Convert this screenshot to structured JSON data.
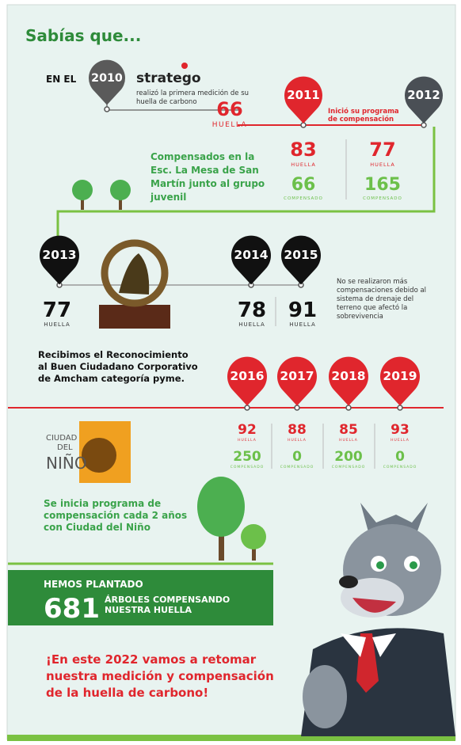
{
  "title": "Sabías que...",
  "y2010": {
    "prefix": "EN EL",
    "year": "2010",
    "brand": "stratego",
    "description": [
      "realizó la primera medición de su",
      "huella de carbono"
    ],
    "footprint": "66",
    "footprint_label": "HUELLA"
  },
  "y2011_2012": {
    "years": [
      "2011",
      "2012"
    ],
    "note": [
      "Inició su programa",
      "de compensación"
    ],
    "footprints": [
      "83",
      "77"
    ],
    "compensated": [
      "66",
      "165"
    ],
    "footprint_label": "HUELLA",
    "compensated_label": "COMPENSADO",
    "caption": [
      "Compensados en la",
      "Esc. La Mesa de San",
      "Martín junto al grupo",
      "juvenil"
    ]
  },
  "y2013_2015": {
    "years": [
      "2013",
      "2014",
      "2015"
    ],
    "footprints": [
      "77",
      "78",
      "91"
    ],
    "footprint_label": "HUELLA",
    "note": [
      "No se realizaron más",
      "compensaciones debido al",
      "sistema de drenaje del",
      "terreno que afectó la",
      "sobrevivencia"
    ],
    "award": [
      "Recibimos el Reconocimiento",
      "al Buen Ciudadano Corporativo",
      "de Amcham categoría pyme."
    ]
  },
  "y2016_2019": {
    "years": [
      "2016",
      "2017",
      "2018",
      "2019"
    ],
    "footprints": [
      "92",
      "88",
      "85",
      "93"
    ],
    "compensated": [
      "250",
      "0",
      "200",
      "0"
    ],
    "footprint_label": "HUELLA",
    "compensated_label": "COMPENSADO",
    "logo": [
      "CIUDAD",
      "DEL",
      "NIÑO"
    ],
    "caption": [
      "Se inicia programa de",
      "compensación cada 2 años",
      "con Ciudad del Niño"
    ]
  },
  "planted": {
    "heading": "HEMOS PLANTADO",
    "count": "681",
    "text": [
      "ÁRBOLES COMPENSANDO",
      "NUESTRA HUELLA"
    ]
  },
  "closing": [
    "¡En este 2022 vamos a retomar",
    "nuestra medición y compensación",
    "de la huella de carbono!"
  ]
}
